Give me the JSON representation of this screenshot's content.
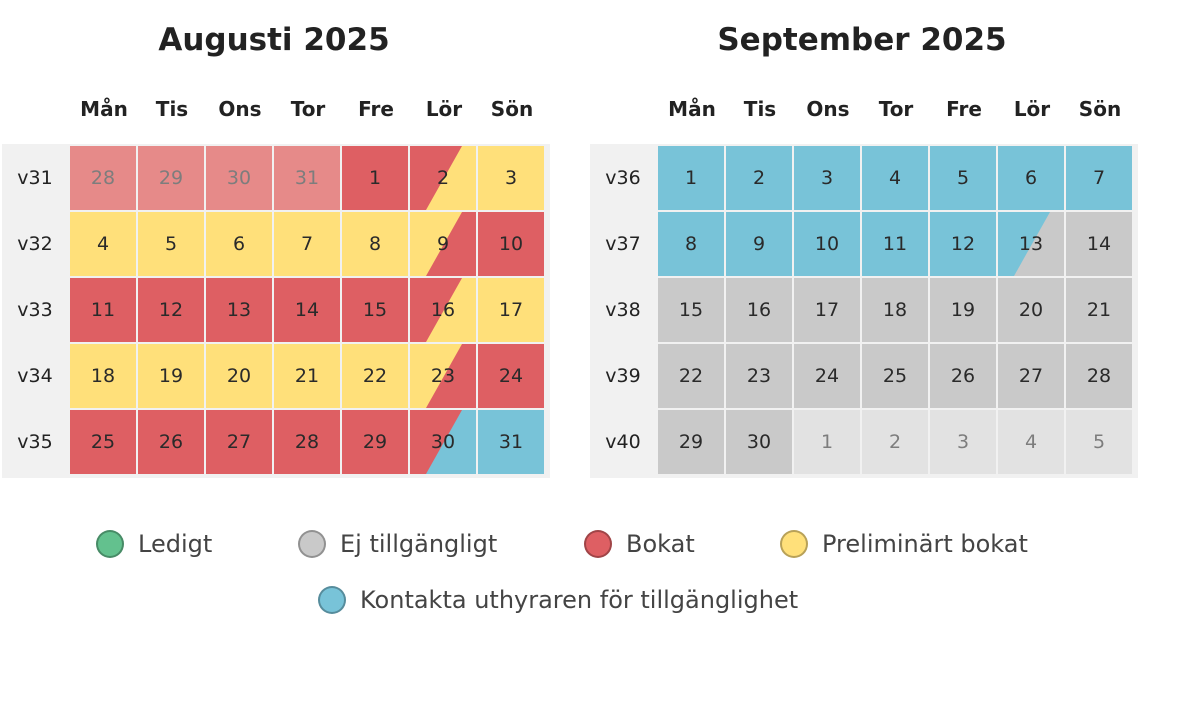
{
  "colors": {
    "available": "#63c18e",
    "unavailable": "#c9c9c9",
    "booked": "#de5f63",
    "preliminary": "#ffe07a",
    "contact": "#78c3d8",
    "past": "#e68a89",
    "out_month": "#e2e2e2"
  },
  "weekdays": [
    "Mån",
    "Tis",
    "Ons",
    "Tor",
    "Fre",
    "Lör",
    "Sön"
  ],
  "months": [
    {
      "title": "Augusti 2025",
      "weeks": [
        {
          "label": "v31",
          "days": [
            {
              "d": "28",
              "s": "past"
            },
            {
              "d": "29",
              "s": "past"
            },
            {
              "d": "30",
              "s": "past"
            },
            {
              "d": "31",
              "s": "past"
            },
            {
              "d": "1",
              "s": "booked"
            },
            {
              "d": "2",
              "s": "booked",
              "s2": "preliminary"
            },
            {
              "d": "3",
              "s": "preliminary"
            }
          ]
        },
        {
          "label": "v32",
          "days": [
            {
              "d": "4",
              "s": "preliminary"
            },
            {
              "d": "5",
              "s": "preliminary"
            },
            {
              "d": "6",
              "s": "preliminary"
            },
            {
              "d": "7",
              "s": "preliminary"
            },
            {
              "d": "8",
              "s": "preliminary"
            },
            {
              "d": "9",
              "s": "preliminary",
              "s2": "booked"
            },
            {
              "d": "10",
              "s": "booked"
            }
          ]
        },
        {
          "label": "v33",
          "days": [
            {
              "d": "11",
              "s": "booked"
            },
            {
              "d": "12",
              "s": "booked"
            },
            {
              "d": "13",
              "s": "booked"
            },
            {
              "d": "14",
              "s": "booked"
            },
            {
              "d": "15",
              "s": "booked"
            },
            {
              "d": "16",
              "s": "booked",
              "s2": "preliminary"
            },
            {
              "d": "17",
              "s": "preliminary"
            }
          ]
        },
        {
          "label": "v34",
          "days": [
            {
              "d": "18",
              "s": "preliminary"
            },
            {
              "d": "19",
              "s": "preliminary"
            },
            {
              "d": "20",
              "s": "preliminary"
            },
            {
              "d": "21",
              "s": "preliminary"
            },
            {
              "d": "22",
              "s": "preliminary"
            },
            {
              "d": "23",
              "s": "preliminary",
              "s2": "booked"
            },
            {
              "d": "24",
              "s": "booked"
            }
          ]
        },
        {
          "label": "v35",
          "days": [
            {
              "d": "25",
              "s": "booked"
            },
            {
              "d": "26",
              "s": "booked"
            },
            {
              "d": "27",
              "s": "booked"
            },
            {
              "d": "28",
              "s": "booked"
            },
            {
              "d": "29",
              "s": "booked"
            },
            {
              "d": "30",
              "s": "booked",
              "s2": "contact"
            },
            {
              "d": "31",
              "s": "contact"
            }
          ]
        }
      ]
    },
    {
      "title": "September 2025",
      "weeks": [
        {
          "label": "v36",
          "days": [
            {
              "d": "1",
              "s": "contact"
            },
            {
              "d": "2",
              "s": "contact"
            },
            {
              "d": "3",
              "s": "contact"
            },
            {
              "d": "4",
              "s": "contact"
            },
            {
              "d": "5",
              "s": "contact"
            },
            {
              "d": "6",
              "s": "contact"
            },
            {
              "d": "7",
              "s": "contact"
            }
          ]
        },
        {
          "label": "v37",
          "days": [
            {
              "d": "8",
              "s": "contact"
            },
            {
              "d": "9",
              "s": "contact"
            },
            {
              "d": "10",
              "s": "contact"
            },
            {
              "d": "11",
              "s": "contact"
            },
            {
              "d": "12",
              "s": "contact"
            },
            {
              "d": "13",
              "s": "contact",
              "s2": "unavailable"
            },
            {
              "d": "14",
              "s": "unavailable"
            }
          ]
        },
        {
          "label": "v38",
          "days": [
            {
              "d": "15",
              "s": "unavailable"
            },
            {
              "d": "16",
              "s": "unavailable"
            },
            {
              "d": "17",
              "s": "unavailable"
            },
            {
              "d": "18",
              "s": "unavailable"
            },
            {
              "d": "19",
              "s": "unavailable"
            },
            {
              "d": "20",
              "s": "unavailable"
            },
            {
              "d": "21",
              "s": "unavailable"
            }
          ]
        },
        {
          "label": "v39",
          "days": [
            {
              "d": "22",
              "s": "unavailable"
            },
            {
              "d": "23",
              "s": "unavailable"
            },
            {
              "d": "24",
              "s": "unavailable"
            },
            {
              "d": "25",
              "s": "unavailable"
            },
            {
              "d": "26",
              "s": "unavailable"
            },
            {
              "d": "27",
              "s": "unavailable"
            },
            {
              "d": "28",
              "s": "unavailable"
            }
          ]
        },
        {
          "label": "v40",
          "days": [
            {
              "d": "29",
              "s": "unavailable"
            },
            {
              "d": "30",
              "s": "unavailable"
            },
            {
              "d": "1",
              "s": "out_month"
            },
            {
              "d": "2",
              "s": "out_month"
            },
            {
              "d": "3",
              "s": "out_month"
            },
            {
              "d": "4",
              "s": "out_month"
            },
            {
              "d": "5",
              "s": "out_month"
            }
          ]
        }
      ]
    }
  ],
  "legend": {
    "available": "Ledigt",
    "unavailable": "Ej tillgängligt",
    "booked": "Bokat",
    "preliminary": "Preliminärt bokat",
    "contact": "Kontakta uthyraren för tillgänglighet"
  }
}
